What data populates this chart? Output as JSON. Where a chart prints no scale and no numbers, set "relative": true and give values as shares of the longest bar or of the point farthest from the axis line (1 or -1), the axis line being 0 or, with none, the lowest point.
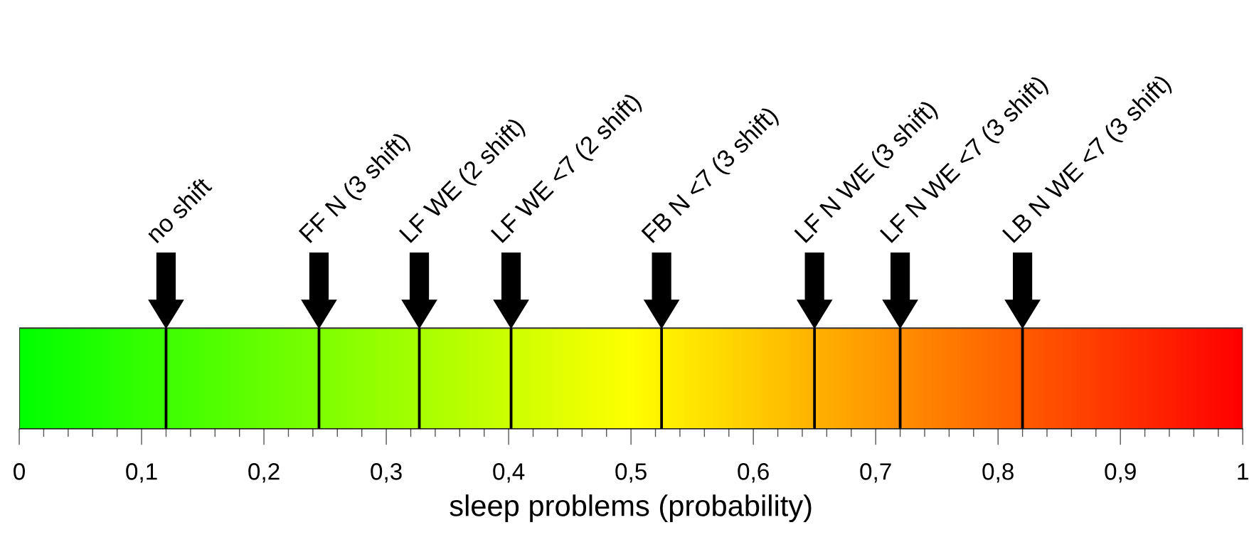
{
  "chart_data": {
    "type": "bar",
    "relative": true,
    "xlabel": "sleep problems (probability)",
    "xlim": [
      0,
      1
    ],
    "xticks": [
      {
        "value": 0,
        "label": "0"
      },
      {
        "value": 0.02,
        "label": null
      },
      {
        "value": 0.04,
        "label": null
      },
      {
        "value": 0.06,
        "label": null
      },
      {
        "value": 0.08,
        "label": null
      },
      {
        "value": 0.1,
        "label": "0,1"
      },
      {
        "value": 0.12,
        "label": null
      },
      {
        "value": 0.14,
        "label": null
      },
      {
        "value": 0.16,
        "label": null
      },
      {
        "value": 0.18,
        "label": null
      },
      {
        "value": 0.2,
        "label": "0,2"
      },
      {
        "value": 0.22,
        "label": null
      },
      {
        "value": 0.24,
        "label": null
      },
      {
        "value": 0.26,
        "label": null
      },
      {
        "value": 0.28,
        "label": null
      },
      {
        "value": 0.3,
        "label": "0,3"
      },
      {
        "value": 0.32,
        "label": null
      },
      {
        "value": 0.34,
        "label": null
      },
      {
        "value": 0.36,
        "label": null
      },
      {
        "value": 0.38,
        "label": null
      },
      {
        "value": 0.4,
        "label": "0,4"
      },
      {
        "value": 0.42,
        "label": null
      },
      {
        "value": 0.44,
        "label": null
      },
      {
        "value": 0.46,
        "label": null
      },
      {
        "value": 0.48,
        "label": null
      },
      {
        "value": 0.5,
        "label": "0,5"
      },
      {
        "value": 0.52,
        "label": null
      },
      {
        "value": 0.54,
        "label": null
      },
      {
        "value": 0.56,
        "label": null
      },
      {
        "value": 0.58,
        "label": null
      },
      {
        "value": 0.6,
        "label": "0,6"
      },
      {
        "value": 0.62,
        "label": null
      },
      {
        "value": 0.64,
        "label": null
      },
      {
        "value": 0.66,
        "label": null
      },
      {
        "value": 0.68,
        "label": null
      },
      {
        "value": 0.7,
        "label": "0,7"
      },
      {
        "value": 0.72,
        "label": null
      },
      {
        "value": 0.74,
        "label": null
      },
      {
        "value": 0.76,
        "label": null
      },
      {
        "value": 0.78,
        "label": null
      },
      {
        "value": 0.8,
        "label": "0,8"
      },
      {
        "value": 0.82,
        "label": null
      },
      {
        "value": 0.84,
        "label": null
      },
      {
        "value": 0.86,
        "label": null
      },
      {
        "value": 0.88,
        "label": null
      },
      {
        "value": 0.9,
        "label": "0,9"
      },
      {
        "value": 0.92,
        "label": null
      },
      {
        "value": 0.94,
        "label": null
      },
      {
        "value": 0.96,
        "label": null
      },
      {
        "value": 0.98,
        "label": null
      },
      {
        "value": 1,
        "label": "1"
      }
    ],
    "x": [
      0.12,
      0.245,
      0.327,
      0.402,
      0.525,
      0.65,
      0.72,
      0.82
    ],
    "values": [
      1,
      1,
      1,
      1,
      1,
      1,
      1,
      1
    ],
    "color": "#000000",
    "annotations": [
      "no shift",
      "FF N (3 shift)",
      "LF WE (2 shift)",
      "LF WE <7 (2 shift)",
      "FB N <7 (3 shift)",
      "LF N WE (3 shift)",
      "LF N WE <7 (3 shift)",
      "LB N WE <7 (3 shift)"
    ],
    "bands": [
      {
        "axis": "x",
        "from": 0,
        "to": 1,
        "color": [
          "#00ff00",
          "#ffff00",
          "#ff0000"
        ]
      }
    ]
  }
}
